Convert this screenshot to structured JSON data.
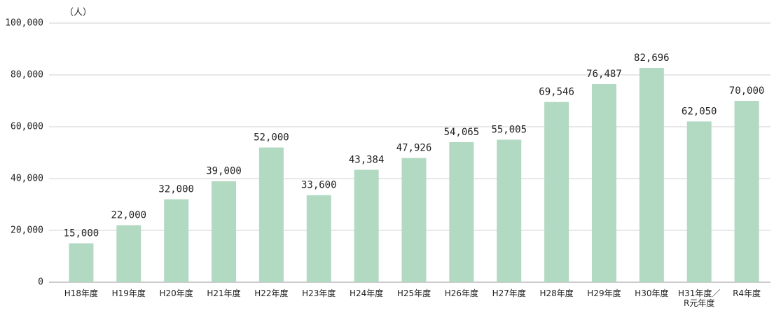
{
  "chart_data": {
    "type": "bar",
    "unit_label": "（人）",
    "categories": [
      "H18年度",
      "H19年度",
      "H20年度",
      "H21年度",
      "H22年度",
      "H23年度",
      "H24年度",
      "H25年度",
      "H26年度",
      "H27年度",
      "H28年度",
      "H29年度",
      "H30年度",
      "H31年度／\nR元年度",
      "R4年度"
    ],
    "values": [
      15000,
      22000,
      32000,
      39000,
      52000,
      33600,
      43384,
      47926,
      54065,
      55005,
      69546,
      76487,
      82696,
      62050,
      70000
    ],
    "value_labels": [
      "15,000",
      "22,000",
      "32,000",
      "39,000",
      "52,000",
      "33,600",
      "43,384",
      "47,926",
      "54,065",
      "55,005",
      "69,546",
      "76,487",
      "82,696",
      "62,050",
      "70,000"
    ],
    "color": "#b2d9c2",
    "ylim": [
      0,
      100000
    ],
    "yticks": [
      0,
      {
        "value": 20000,
        "label": "20,000"
      },
      {
        "value": 40000,
        "label": "40,000"
      },
      {
        "value": 60000,
        "label": "60,000"
      },
      {
        "value": 80000,
        "label": "80,000"
      },
      {
        "value": 100000,
        "label": "100,000"
      }
    ],
    "grid": true
  }
}
